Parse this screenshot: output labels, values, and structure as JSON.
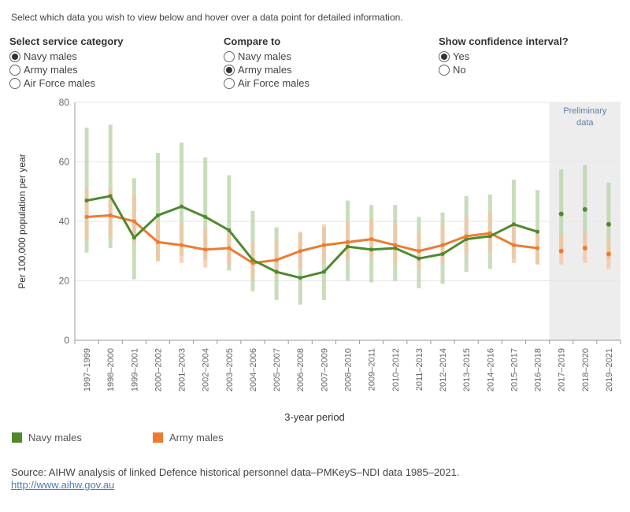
{
  "instructions": "Select which data you wish to view below and hover over a data point for detailed information.",
  "controls": {
    "service_category": {
      "title": "Select service category",
      "options": [
        "Navy males",
        "Army males",
        "Air Force males"
      ],
      "selected": 0
    },
    "compare_to": {
      "title": "Compare to",
      "options": [
        "Navy males",
        "Army males",
        "Air Force males"
      ],
      "selected": 1
    },
    "confidence": {
      "title": "Show confidence interval?",
      "options": [
        "Yes",
        "No"
      ],
      "selected": 0
    }
  },
  "chart_data": {
    "type": "line",
    "xlabel": "3-year period",
    "ylabel": "Per 100,000 population per year",
    "ylim": [
      0,
      80
    ],
    "yticks": [
      0,
      20,
      40,
      60,
      80
    ],
    "grid": true,
    "categories": [
      "1997–1999",
      "1998–2000",
      "1999–2001",
      "2000–2002",
      "2001–2003",
      "2002–2004",
      "2003–2005",
      "2004–2006",
      "2005–2007",
      "2006–2008",
      "2007–2009",
      "2008–2010",
      "2009–2011",
      "2010–2012",
      "2011–2013",
      "2012–2014",
      "2013–2015",
      "2014–2016",
      "2015–2017",
      "2016–2018",
      "2017–2019",
      "2018–2020",
      "2019–2021"
    ],
    "preliminary_label": "Preliminary data",
    "preliminary_start_index": 20,
    "series": [
      {
        "name": "Navy males",
        "color": "#4e8a2d",
        "ci_color": "#b5d1a4",
        "values": [
          47,
          48.5,
          34.5,
          42,
          45,
          41.5,
          37,
          27,
          23,
          21,
          23,
          31.5,
          30.5,
          31,
          27.5,
          29,
          34,
          35,
          39,
          36.5,
          42.5,
          44,
          39
        ],
        "lower": [
          29.5,
          31,
          20.5,
          27,
          28.5,
          27,
          23.5,
          16.5,
          13.5,
          12,
          13.5,
          20,
          19.5,
          20,
          17.5,
          19,
          23,
          24,
          27.5,
          25.5,
          29.5,
          31,
          27
        ],
        "upper": [
          71.5,
          72.5,
          54.5,
          63,
          66.5,
          61.5,
          55.5,
          43.5,
          38,
          36,
          38,
          47,
          45.5,
          45.5,
          41.5,
          43,
          48.5,
          49,
          54,
          50.5,
          57.5,
          59,
          53
        ]
      },
      {
        "name": "Army males",
        "color": "#ee7b30",
        "ci_color": "#f5c3a0",
        "values": [
          41.5,
          42,
          40,
          33,
          32,
          30.5,
          31,
          26,
          27,
          30,
          32,
          33,
          34,
          32,
          30,
          32,
          35,
          36,
          32,
          31,
          30,
          31,
          29
        ],
        "lower": [
          34,
          34.5,
          33,
          26.5,
          26,
          24.5,
          25,
          20.5,
          21.5,
          24,
          26,
          27,
          28,
          26,
          24,
          26,
          29,
          30,
          26,
          25.5,
          25.5,
          26,
          24
        ],
        "upper": [
          51,
          51,
          49,
          40,
          39.5,
          37.5,
          38,
          33,
          34,
          36.5,
          39,
          40,
          41,
          39,
          36.5,
          38.5,
          42,
          43,
          39,
          37.5,
          36,
          36.5,
          34.5
        ]
      }
    ]
  },
  "legend": {
    "navy_label": "Navy males",
    "army_label": "Army males",
    "navy_color": "#4e8a2d",
    "army_color": "#ee7b30"
  },
  "footer": {
    "source": "Source: AIHW analysis of linked Defence historical personnel data–PMKeyS–NDI data 1985–2021.",
    "link": "http://www.aihw.gov.au"
  }
}
